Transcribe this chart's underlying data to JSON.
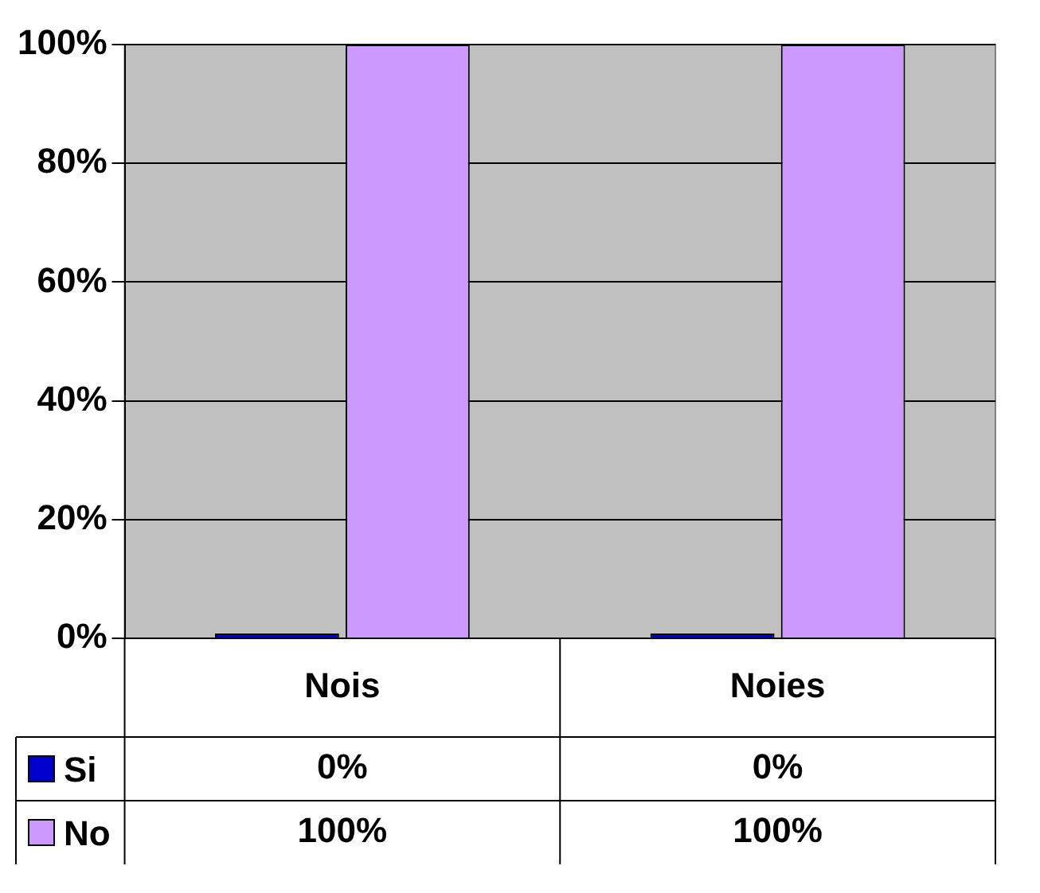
{
  "chart_data": {
    "type": "bar",
    "categories": [
      "Nois",
      "Noies"
    ],
    "series": [
      {
        "name": "Si",
        "color": "#0000cc",
        "values": [
          0,
          0
        ],
        "value_labels": [
          "0%",
          "0%"
        ]
      },
      {
        "name": "No",
        "color": "#cc99ff",
        "values": [
          100,
          100
        ],
        "value_labels": [
          "100%",
          "100%"
        ]
      }
    ],
    "ylim": [
      0,
      100
    ],
    "yticks": [
      {
        "value": 0,
        "label": "0%"
      },
      {
        "value": 20,
        "label": "20%"
      },
      {
        "value": 40,
        "label": "40%"
      },
      {
        "value": 60,
        "label": "60%"
      },
      {
        "value": 80,
        "label": "80%"
      },
      {
        "value": 100,
        "label": "100%"
      }
    ],
    "grid": "y",
    "legend": "bottom"
  }
}
